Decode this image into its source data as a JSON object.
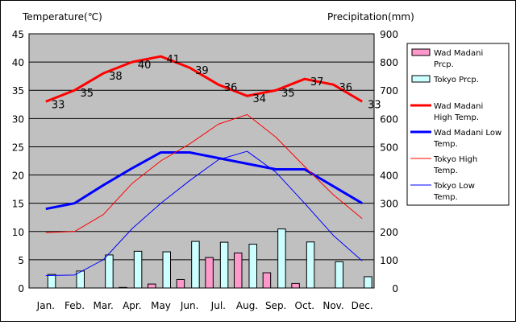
{
  "chart_data": {
    "type": "bar+line",
    "left_axis_title": "Temperature(℃)",
    "right_axis_title": "Precipitation(mm)",
    "categories": [
      "Jan.",
      "Feb.",
      "Mar.",
      "Apr.",
      "May",
      "Jun.",
      "Jul.",
      "Aug.",
      "Sep.",
      "Oct.",
      "Nov.",
      "Dec."
    ],
    "ylim_left": [
      0,
      45
    ],
    "yticks_left": [
      0,
      5,
      10,
      15,
      20,
      25,
      30,
      35,
      40,
      45
    ],
    "ylim_right": [
      0,
      900
    ],
    "yticks_right": [
      0,
      100,
      200,
      300,
      400,
      500,
      600,
      700,
      800,
      900
    ],
    "grid": true,
    "legend_position": "right",
    "bar_series": [
      {
        "name": "Wad Madani Prcp.",
        "color": "#ff99cc",
        "axis": "right",
        "values": [
          0,
          0,
          0,
          2,
          14,
          30,
          108,
          124,
          54,
          16,
          0,
          0
        ]
      },
      {
        "name": "Tokyo Prcp.",
        "color": "#ccffff",
        "axis": "right",
        "values": [
          48,
          60,
          117,
          130,
          128,
          165,
          162,
          155,
          209,
          163,
          93,
          40
        ]
      }
    ],
    "line_series": [
      {
        "name": "Wad Madani High Temp.",
        "color": "#ff0000",
        "width": 3,
        "axis": "left",
        "values": [
          33,
          35,
          38,
          40,
          41,
          39,
          36,
          34,
          35,
          37,
          36,
          33
        ],
        "data_labels": [
          "33",
          "35",
          "38",
          "40",
          "41",
          "39",
          "36",
          "34",
          "35",
          "37",
          "36",
          "33"
        ]
      },
      {
        "name": "Wad Madani Low Temp.",
        "color": "#0000ff",
        "width": 3,
        "axis": "left",
        "values": [
          14,
          15,
          18.2,
          21.2,
          24,
          24,
          23,
          22,
          21,
          21,
          18,
          15
        ]
      },
      {
        "name": "Tokyo High Temp.",
        "color": "#ff0000",
        "width": 1,
        "axis": "left",
        "values": [
          9.8,
          10,
          13,
          18.5,
          22.5,
          25.5,
          29,
          30.7,
          26.7,
          21.5,
          16.5,
          12.3
        ]
      },
      {
        "name": "Tokyo Low Temp.",
        "color": "#0000ff",
        "width": 1,
        "axis": "left",
        "values": [
          2.2,
          2.3,
          5,
          10.5,
          15,
          19,
          22.7,
          24.2,
          20.5,
          15,
          9.3,
          4.8
        ]
      }
    ],
    "legend": [
      {
        "kind": "bar",
        "color": "#ff99cc",
        "lines": [
          "Wad Madani",
          "Prcp."
        ]
      },
      {
        "kind": "bar",
        "color": "#ccffff",
        "lines": [
          "Tokyo Prcp."
        ]
      },
      {
        "kind": "line",
        "color": "#ff0000",
        "width": 3,
        "lines": [
          "Wad Madani",
          "High Temp."
        ]
      },
      {
        "kind": "line",
        "color": "#0000ff",
        "width": 3,
        "lines": [
          "Wad Madani Low",
          "Temp."
        ]
      },
      {
        "kind": "line",
        "color": "#ff0000",
        "width": 1,
        "lines": [
          "Tokyo High",
          "Temp."
        ]
      },
      {
        "kind": "line",
        "color": "#0000ff",
        "width": 1,
        "lines": [
          "Tokyo Low",
          "Temp."
        ]
      }
    ],
    "plot_background": "#c0c0c0"
  }
}
